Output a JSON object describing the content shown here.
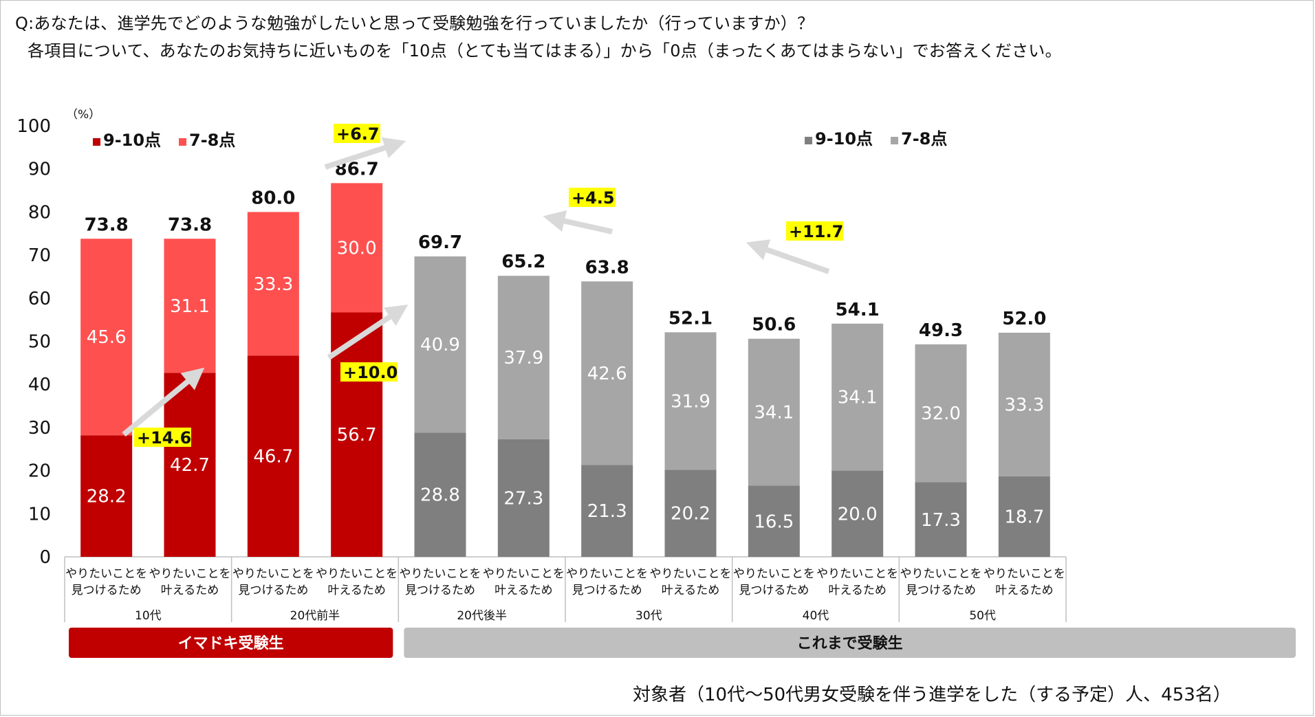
{
  "question_line1": "Q:あなたは、進学先でどのような勉強がしたいと思って受験勉強を行っていましたか（行っていますか）？",
  "question_line2": "各項目について、あなたのお気持ちに近いものを「10点（とても当てはまる）」から「0点（まったくあてはまらない」でお答えください。",
  "source_note": "対象者（10代～50代男女受験を伴う進学をした（する予定）人、453名）",
  "chart_data": {
    "type": "bar",
    "stacked": true,
    "unit_label": "（%）",
    "ylim": [
      0,
      100
    ],
    "yticks": [
      "0",
      "10",
      "20",
      "30",
      "40",
      "50",
      "60",
      "70",
      "80",
      "90",
      "100"
    ],
    "categories": [
      "やりたいことを見つけるため",
      "やりたいことを叶えるため",
      "やりたいことを見つけるため",
      "やりたいことを叶えるため",
      "やりたいことを見つけるため",
      "やりたいことを叶えるため",
      "やりたいことを見つけるため",
      "やりたいことを叶えるため",
      "やりたいことを見つけるため",
      "やりたいことを叶えるため",
      "やりたいことを見つけるため",
      "やりたいことを叶えるため"
    ],
    "category_lines": [
      [
        "やりたいことを",
        "見つけるため"
      ],
      [
        "やりたいことを",
        "叶えるため"
      ],
      [
        "やりたいことを",
        "見つけるため"
      ],
      [
        "やりたいことを",
        "叶えるため"
      ],
      [
        "やりたいことを",
        "見つけるため"
      ],
      [
        "やりたいことを",
        "叶えるため"
      ],
      [
        "やりたいことを",
        "見つけるため"
      ],
      [
        "やりたいことを",
        "叶えるため"
      ],
      [
        "やりたいことを",
        "見つけるため"
      ],
      [
        "やりたいことを",
        "叶えるため"
      ],
      [
        "やりたいことを",
        "見つけるため"
      ],
      [
        "やりたいことを",
        "叶えるため"
      ]
    ],
    "age_groups": [
      "10代",
      "20代前半",
      "20代後半",
      "30代",
      "40代",
      "50代"
    ],
    "cohorts": [
      {
        "label": "イマドキ受験生",
        "color": "#c00000"
      },
      {
        "label": "これまで受験生",
        "color": "#bfbfbf"
      }
    ],
    "series": [
      {
        "name": "9-10点",
        "values": [
          28.2,
          42.7,
          46.7,
          56.7,
          28.8,
          27.3,
          21.3,
          20.2,
          16.5,
          20.0,
          17.3,
          18.7
        ]
      },
      {
        "name": "7-8点",
        "values": [
          45.6,
          31.1,
          33.3,
          30.0,
          40.9,
          37.9,
          42.6,
          31.9,
          34.1,
          34.1,
          32.0,
          33.3
        ]
      }
    ],
    "totals": [
      "73.8",
      "73.8",
      "80.0",
      "86.7",
      "69.7",
      "65.2",
      "63.8",
      "52.1",
      "50.6",
      "54.1",
      "49.3",
      "52.0"
    ],
    "bottom_labels": [
      "28.2",
      "42.7",
      "46.7",
      "56.7",
      "28.8",
      "27.3",
      "21.3",
      "20.2",
      "16.5",
      "20.0",
      "17.3",
      "18.7"
    ],
    "top_labels": [
      "45.6",
      "31.1",
      "33.3",
      "30.0",
      "40.9",
      "37.9",
      "42.6",
      "31.9",
      "34.1",
      "34.1",
      "32.0",
      "33.3"
    ],
    "legends": [
      {
        "items": [
          {
            "name": "9-10点",
            "color": "#c00000"
          },
          {
            "name": "7-8点",
            "color": "#ff5050"
          }
        ]
      },
      {
        "items": [
          {
            "name": "9-10点",
            "color": "#7f7f7f"
          },
          {
            "name": "7-8点",
            "color": "#a6a6a6"
          }
        ]
      }
    ],
    "colors": {
      "red_bottom": "#c00000",
      "red_top": "#ff5050",
      "gray_bottom": "#7f7f7f",
      "gray_top": "#a6a6a6",
      "highlight": "#ffff00",
      "arrow": "#d9d9d9"
    },
    "annotations": [
      "+14.6",
      "+10.0",
      "+6.7",
      "+4.5",
      "+11.7"
    ]
  }
}
